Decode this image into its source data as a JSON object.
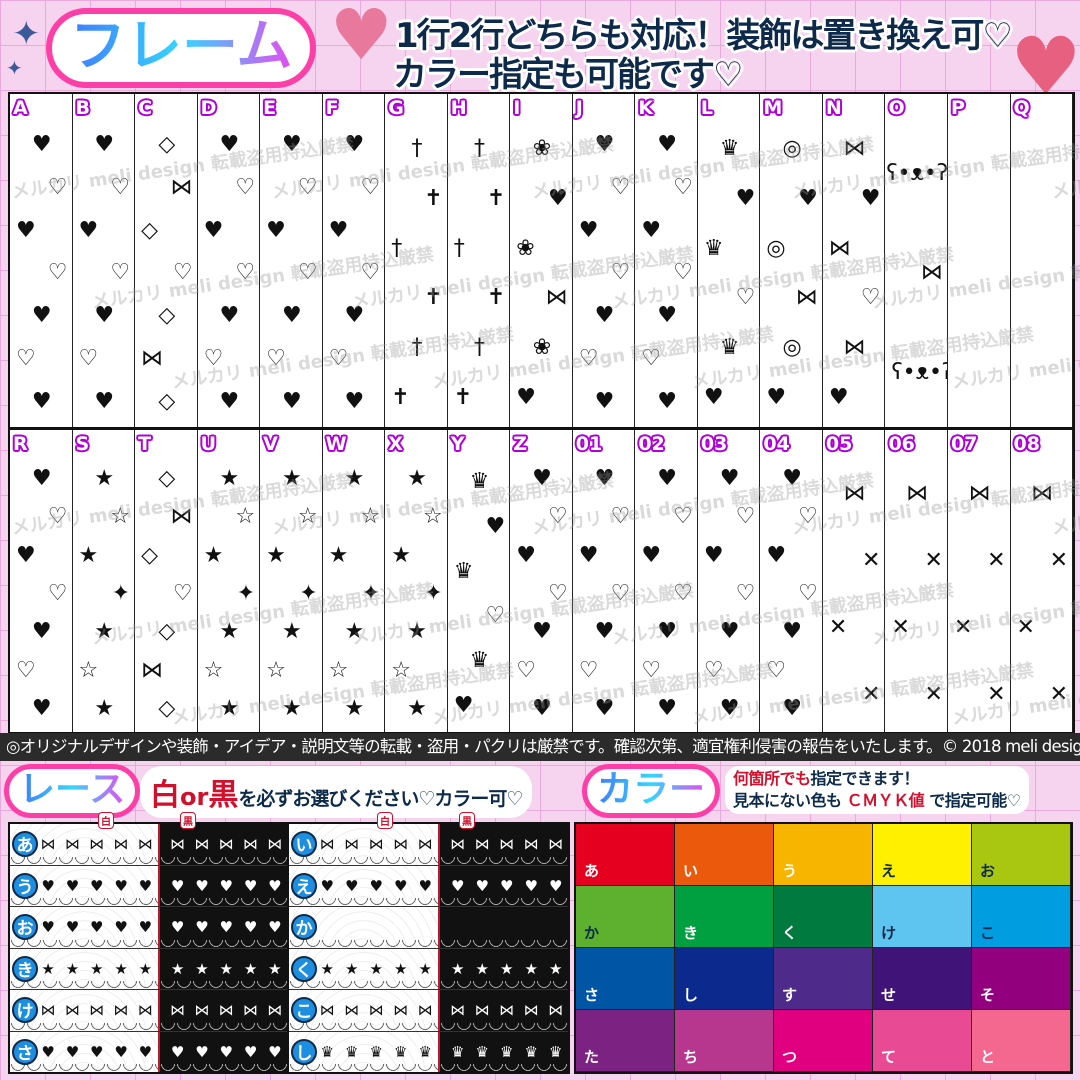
{
  "header": {
    "title": "フレーム",
    "line1": "1行2行どちらも対応！装飾は置き換え可♡",
    "line2": "カラー指定も可能です♡"
  },
  "frames": {
    "row1": [
      {
        "label": "A",
        "icon": "heart"
      },
      {
        "label": "B",
        "icon": "heart"
      },
      {
        "label": "C",
        "icon": "diamond"
      },
      {
        "label": "D",
        "icon": "heart"
      },
      {
        "label": "E",
        "icon": "heart"
      },
      {
        "label": "F",
        "icon": "heart"
      },
      {
        "label": "G",
        "icon": "cross"
      },
      {
        "label": "H",
        "icon": "cross"
      },
      {
        "label": "I",
        "icon": "rose"
      },
      {
        "label": "J",
        "icon": "heart"
      },
      {
        "label": "K",
        "icon": "heart"
      },
      {
        "label": "L",
        "icon": "crown"
      },
      {
        "label": "M",
        "icon": "lollipop"
      },
      {
        "label": "N",
        "icon": "candy"
      },
      {
        "label": "O",
        "icon": "bear"
      },
      {
        "label": "P",
        "icon": "none"
      },
      {
        "label": "Q",
        "icon": "none"
      }
    ],
    "row2": [
      {
        "label": "R",
        "icon": "heart"
      },
      {
        "label": "S",
        "icon": "star"
      },
      {
        "label": "T",
        "icon": "diamond"
      },
      {
        "label": "U",
        "icon": "star"
      },
      {
        "label": "V",
        "icon": "star"
      },
      {
        "label": "W",
        "icon": "star"
      },
      {
        "label": "X",
        "icon": "star"
      },
      {
        "label": "Y",
        "icon": "crown"
      },
      {
        "label": "Z",
        "icon": "heart"
      },
      {
        "label": "01",
        "icon": "heart"
      },
      {
        "label": "02",
        "icon": "heart"
      },
      {
        "label": "03",
        "icon": "heart"
      },
      {
        "label": "04",
        "icon": "heart"
      },
      {
        "label": "05",
        "icon": "ribbon-cross"
      },
      {
        "label": "06",
        "icon": "ribbon-cross"
      },
      {
        "label": "07",
        "icon": "ribbon-cross"
      },
      {
        "label": "08",
        "icon": "ribbon-cross"
      }
    ],
    "watermark": "メルカリ meli design 転載盗用持込厳禁"
  },
  "caption": "◎オリジナルデザインや装飾・アイデア・説明文等の転載・盗用・パクリは厳禁です。確認次第、適宜権利侵害の報告をいたします。© 2018 meli design",
  "lace": {
    "title": "レース",
    "white": "白",
    "or": "or",
    "black": "黒",
    "rest": "を必ずお選びください♡カラー可♡",
    "white_tag": "白",
    "black_tag": "黒",
    "left": [
      "あ",
      "う",
      "お",
      "き",
      "け",
      "さ"
    ],
    "right": [
      "い",
      "え",
      "か",
      "く",
      "こ",
      "し"
    ],
    "left_motifs": [
      "⋈",
      "♥",
      "♥",
      "★",
      "⋈",
      "♥"
    ],
    "right_motifs": [
      "⋈",
      "♥",
      "",
      "★",
      "⋈",
      "♛"
    ]
  },
  "color": {
    "title": "カラー",
    "note1a": "何箇所でも",
    "note1b": "指定できます！",
    "note2a": "見本にない色も",
    "note2b": "ＣＭＹＫ値",
    "note2c": "で指定可能♡",
    "swatches": [
      {
        "label": "あ",
        "hex": "#e60020",
        "text": "#fff"
      },
      {
        "label": "い",
        "hex": "#eb5a0c",
        "text": "#fff"
      },
      {
        "label": "う",
        "hex": "#f7b500",
        "text": "#fff"
      },
      {
        "label": "え",
        "hex": "#fff000",
        "text": "#0d2a4a"
      },
      {
        "label": "お",
        "hex": "#a9c711",
        "text": "#0d2a4a"
      },
      {
        "label": "か",
        "hex": "#5db12e",
        "text": "#0d2a4a"
      },
      {
        "label": "き",
        "hex": "#00a040",
        "text": "#fff"
      },
      {
        "label": "く",
        "hex": "#007a3e",
        "text": "#fff"
      },
      {
        "label": "け",
        "hex": "#5ec4f0",
        "text": "#0d2a4a"
      },
      {
        "label": "こ",
        "hex": "#009ee0",
        "text": "#0d2a4a"
      },
      {
        "label": "さ",
        "hex": "#0055a5",
        "text": "#fff"
      },
      {
        "label": "し",
        "hex": "#0c2a8e",
        "text": "#fff"
      },
      {
        "label": "す",
        "hex": "#4e2a8a",
        "text": "#fff"
      },
      {
        "label": "せ",
        "hex": "#3f1378",
        "text": "#fff"
      },
      {
        "label": "そ",
        "hex": "#92007e",
        "text": "#fff"
      },
      {
        "label": "た",
        "hex": "#7b2283",
        "text": "#fff"
      },
      {
        "label": "ち",
        "hex": "#b7378f",
        "text": "#fff"
      },
      {
        "label": "つ",
        "hex": "#e0007f",
        "text": "#fff"
      },
      {
        "label": "て",
        "hex": "#e84b93",
        "text": "#fff"
      },
      {
        "label": "と",
        "hex": "#f4678f",
        "text": "#fff"
      }
    ]
  }
}
